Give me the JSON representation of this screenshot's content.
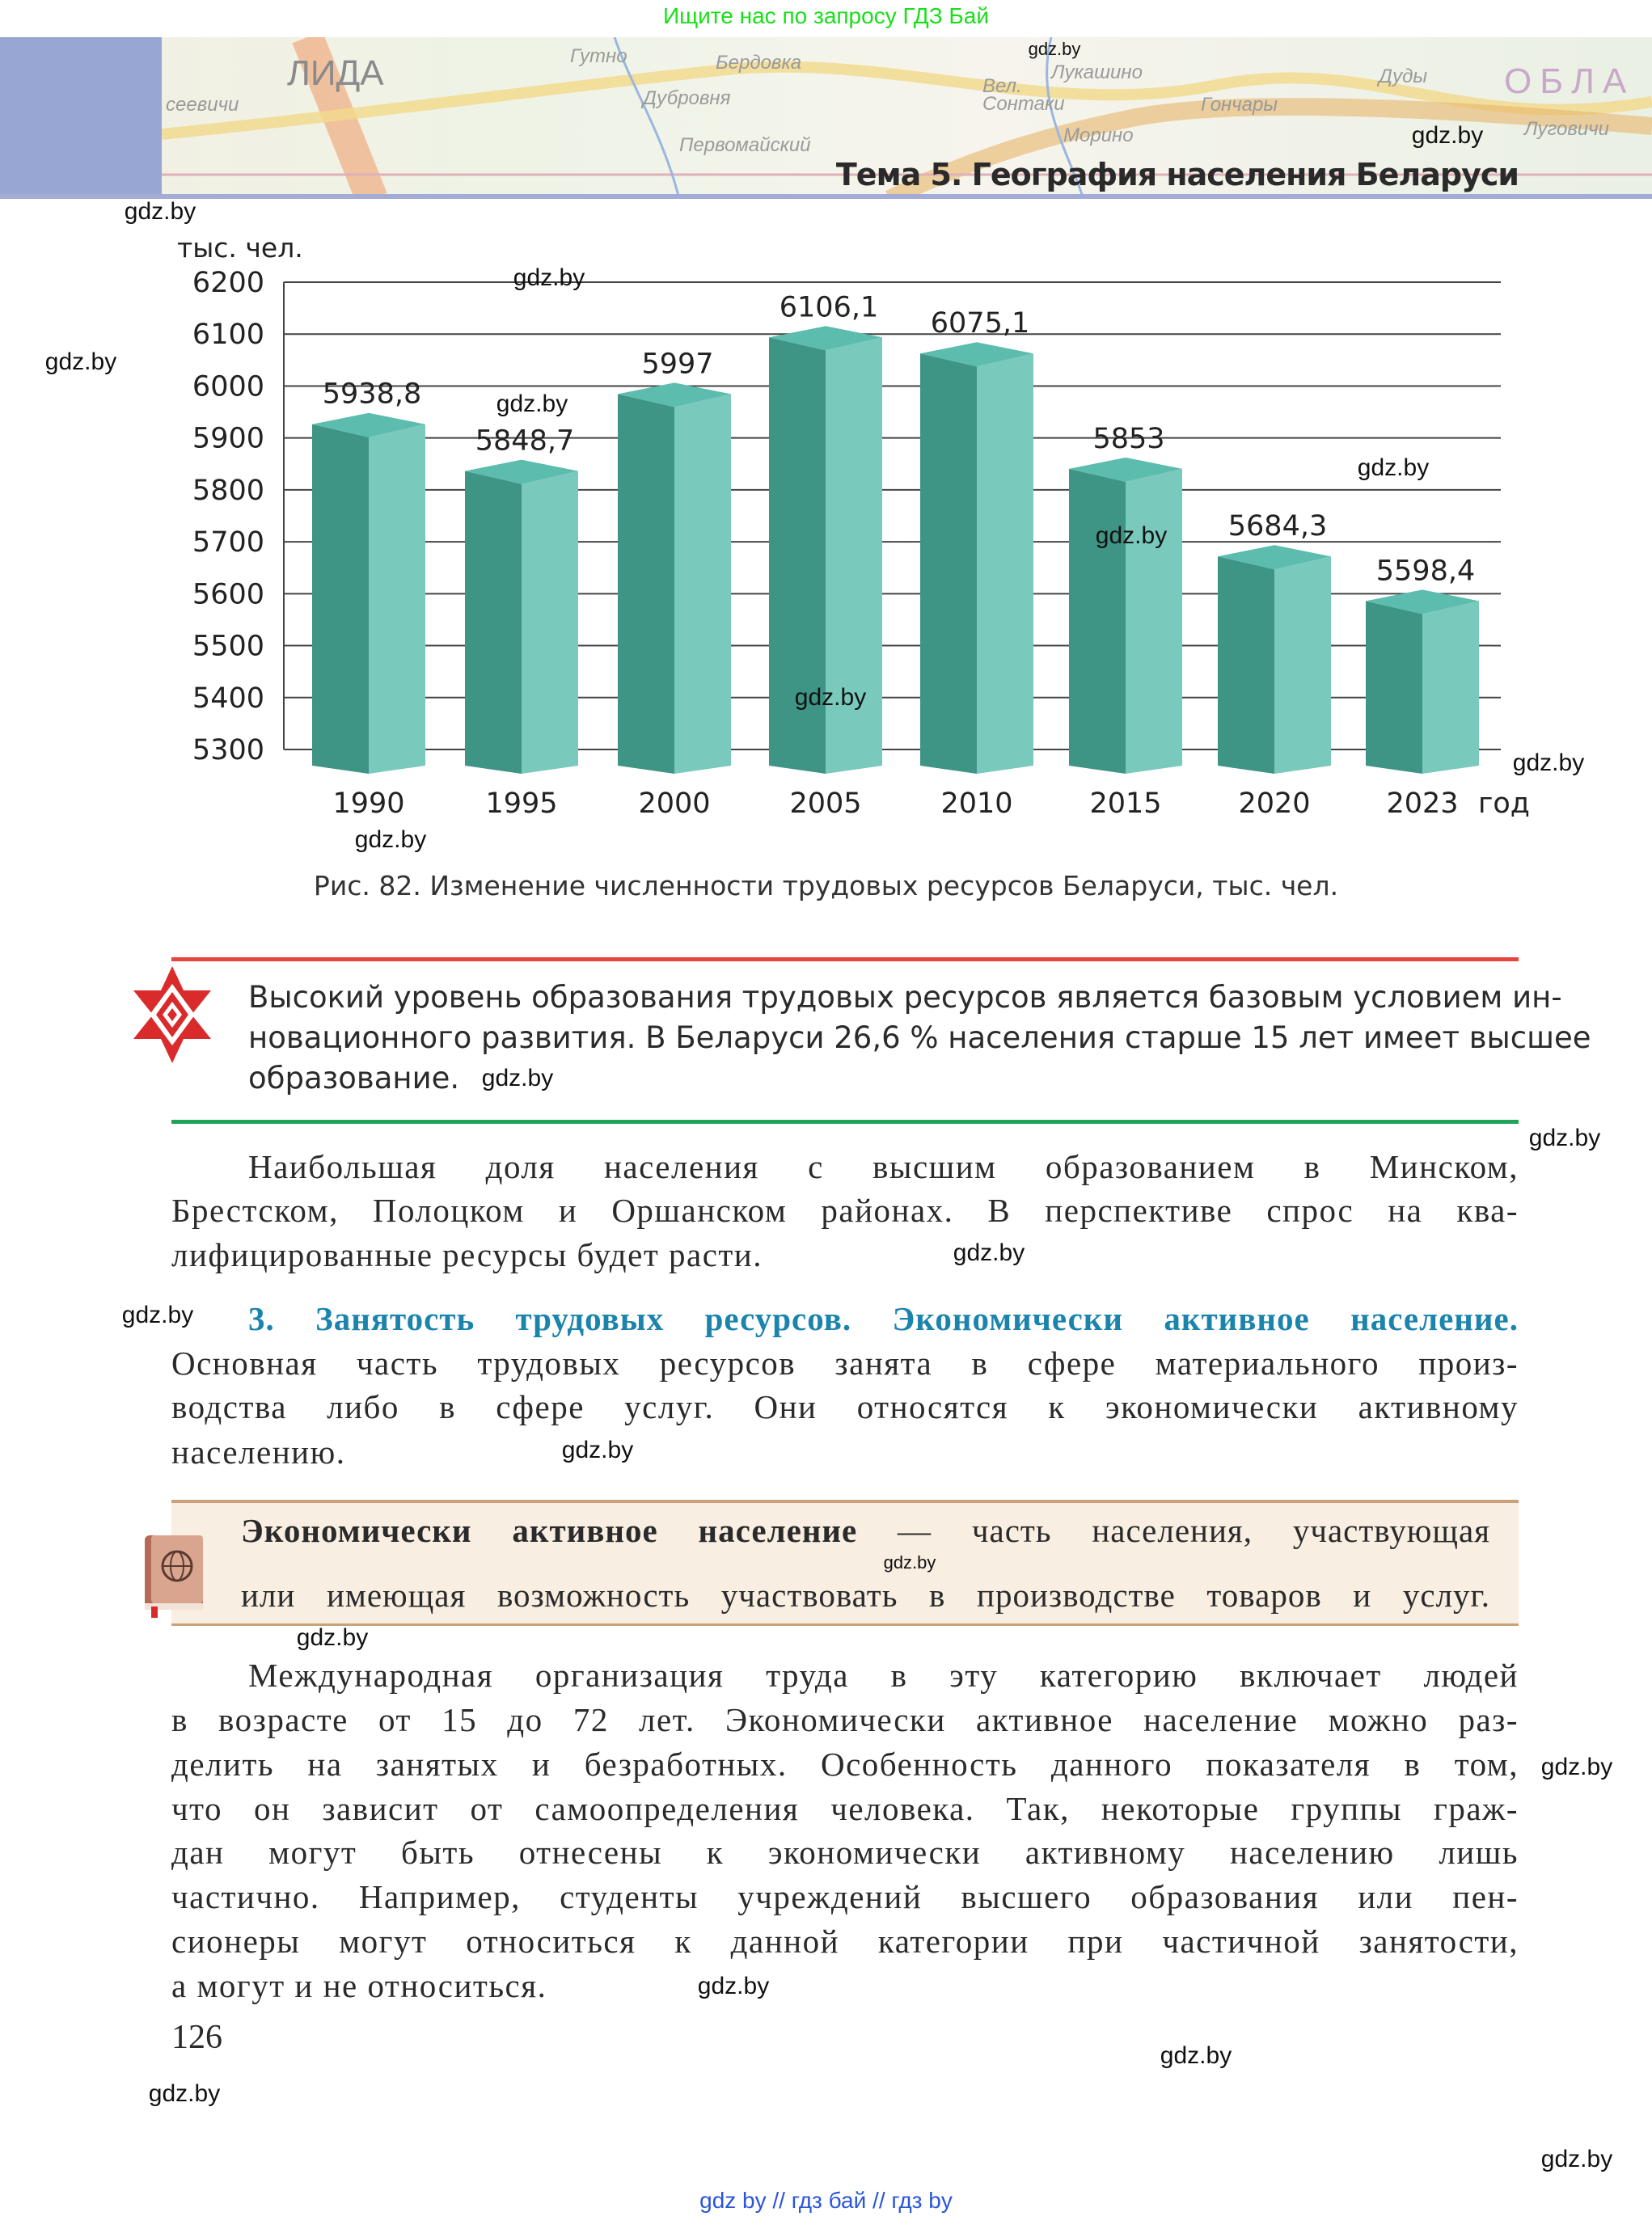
{
  "top_note": "Ищите нас по запросу ГДЗ Бай",
  "header": {
    "topic": "Тема 5. География населения Беларуси",
    "map_labels": [
      "ЛИДА",
      "Гутно",
      "Бердовка",
      "Дубровня",
      "Первомайский",
      "Вел. Сонтаки",
      "Лукашино",
      "Гончары",
      "Морино",
      "Дуды",
      "ОБЛА",
      "Луговичи",
      "сеевичи"
    ]
  },
  "chart_data": {
    "type": "bar",
    "title": "Рис. 82. Изменение численности трудовых ресурсов Беларуси, тыс. чел.",
    "ylabel": "тыс. чел.",
    "xlabel": "год",
    "categories": [
      "1990",
      "1995",
      "2000",
      "2005",
      "2010",
      "2015",
      "2020",
      "2023"
    ],
    "values": [
      5938.8,
      5848.7,
      5997,
      6106.1,
      6075.1,
      5853,
      5684.3,
      5598.4
    ],
    "value_labels": [
      "5938,8",
      "5848,7",
      "5997",
      "6106,1",
      "6075,1",
      "5853",
      "5684,3",
      "5598,4"
    ],
    "ylim": [
      5300,
      6200
    ],
    "yticks": [
      "6200",
      "6100",
      "6000",
      "5900",
      "5800",
      "5700",
      "5600",
      "5500",
      "5400",
      "5300"
    ],
    "grid": true,
    "colors": {
      "front_dark": "#3f9585",
      "front_light": "#79c9bd",
      "top": "#5cbcad"
    }
  },
  "callout": {
    "lines": [
      "Высокий уровень образования трудовых ресурсов является базовым условием ин-",
      "новационного развития. В Беларуси 26,6 % населения старше 15 лет имеет высшее",
      "образование."
    ]
  },
  "para1": [
    "Наибольшая доля населения с высшим образованием в Минском,",
    "Брестском, Полоцком и Оршанском районах. В перспективе спрос на ква-",
    "лифицированные ресурсы будет расти."
  ],
  "section_heading": "3. Занятость трудовых ресурсов. Экономически активное население.",
  "para2": [
    "Основная часть трудовых ресурсов занята в сфере материального произ-",
    "водства либо в сфере услуг. Они относятся к экономически активному",
    "населению."
  ],
  "definition": {
    "term": "Экономически активное население",
    "line1_rest": " — часть населения, участвующая",
    "line2": "или имеющая возможность участвовать в производстве товаров и услуг."
  },
  "para3": [
    "Международная организация труда в эту категорию включает людей",
    "в возрасте от 15 до 72 лет. Экономически активное население можно раз-",
    "делить на занятых и безработных. Особенность данного показателя в том,",
    "что он зависит от самоопределения человека. Так, некоторые группы граж-",
    "дан могут быть отнесены к экономически активному населению лишь",
    "частично. Например, студенты учреждений высшего образования или пен-",
    "сионеры могут относиться к данной категории при частичной занятости,",
    "а могут и не относиться."
  ],
  "page_number": "126",
  "footer": "gdz by  //  гдз бай  //  гдз by",
  "watermark": "gdz.by"
}
